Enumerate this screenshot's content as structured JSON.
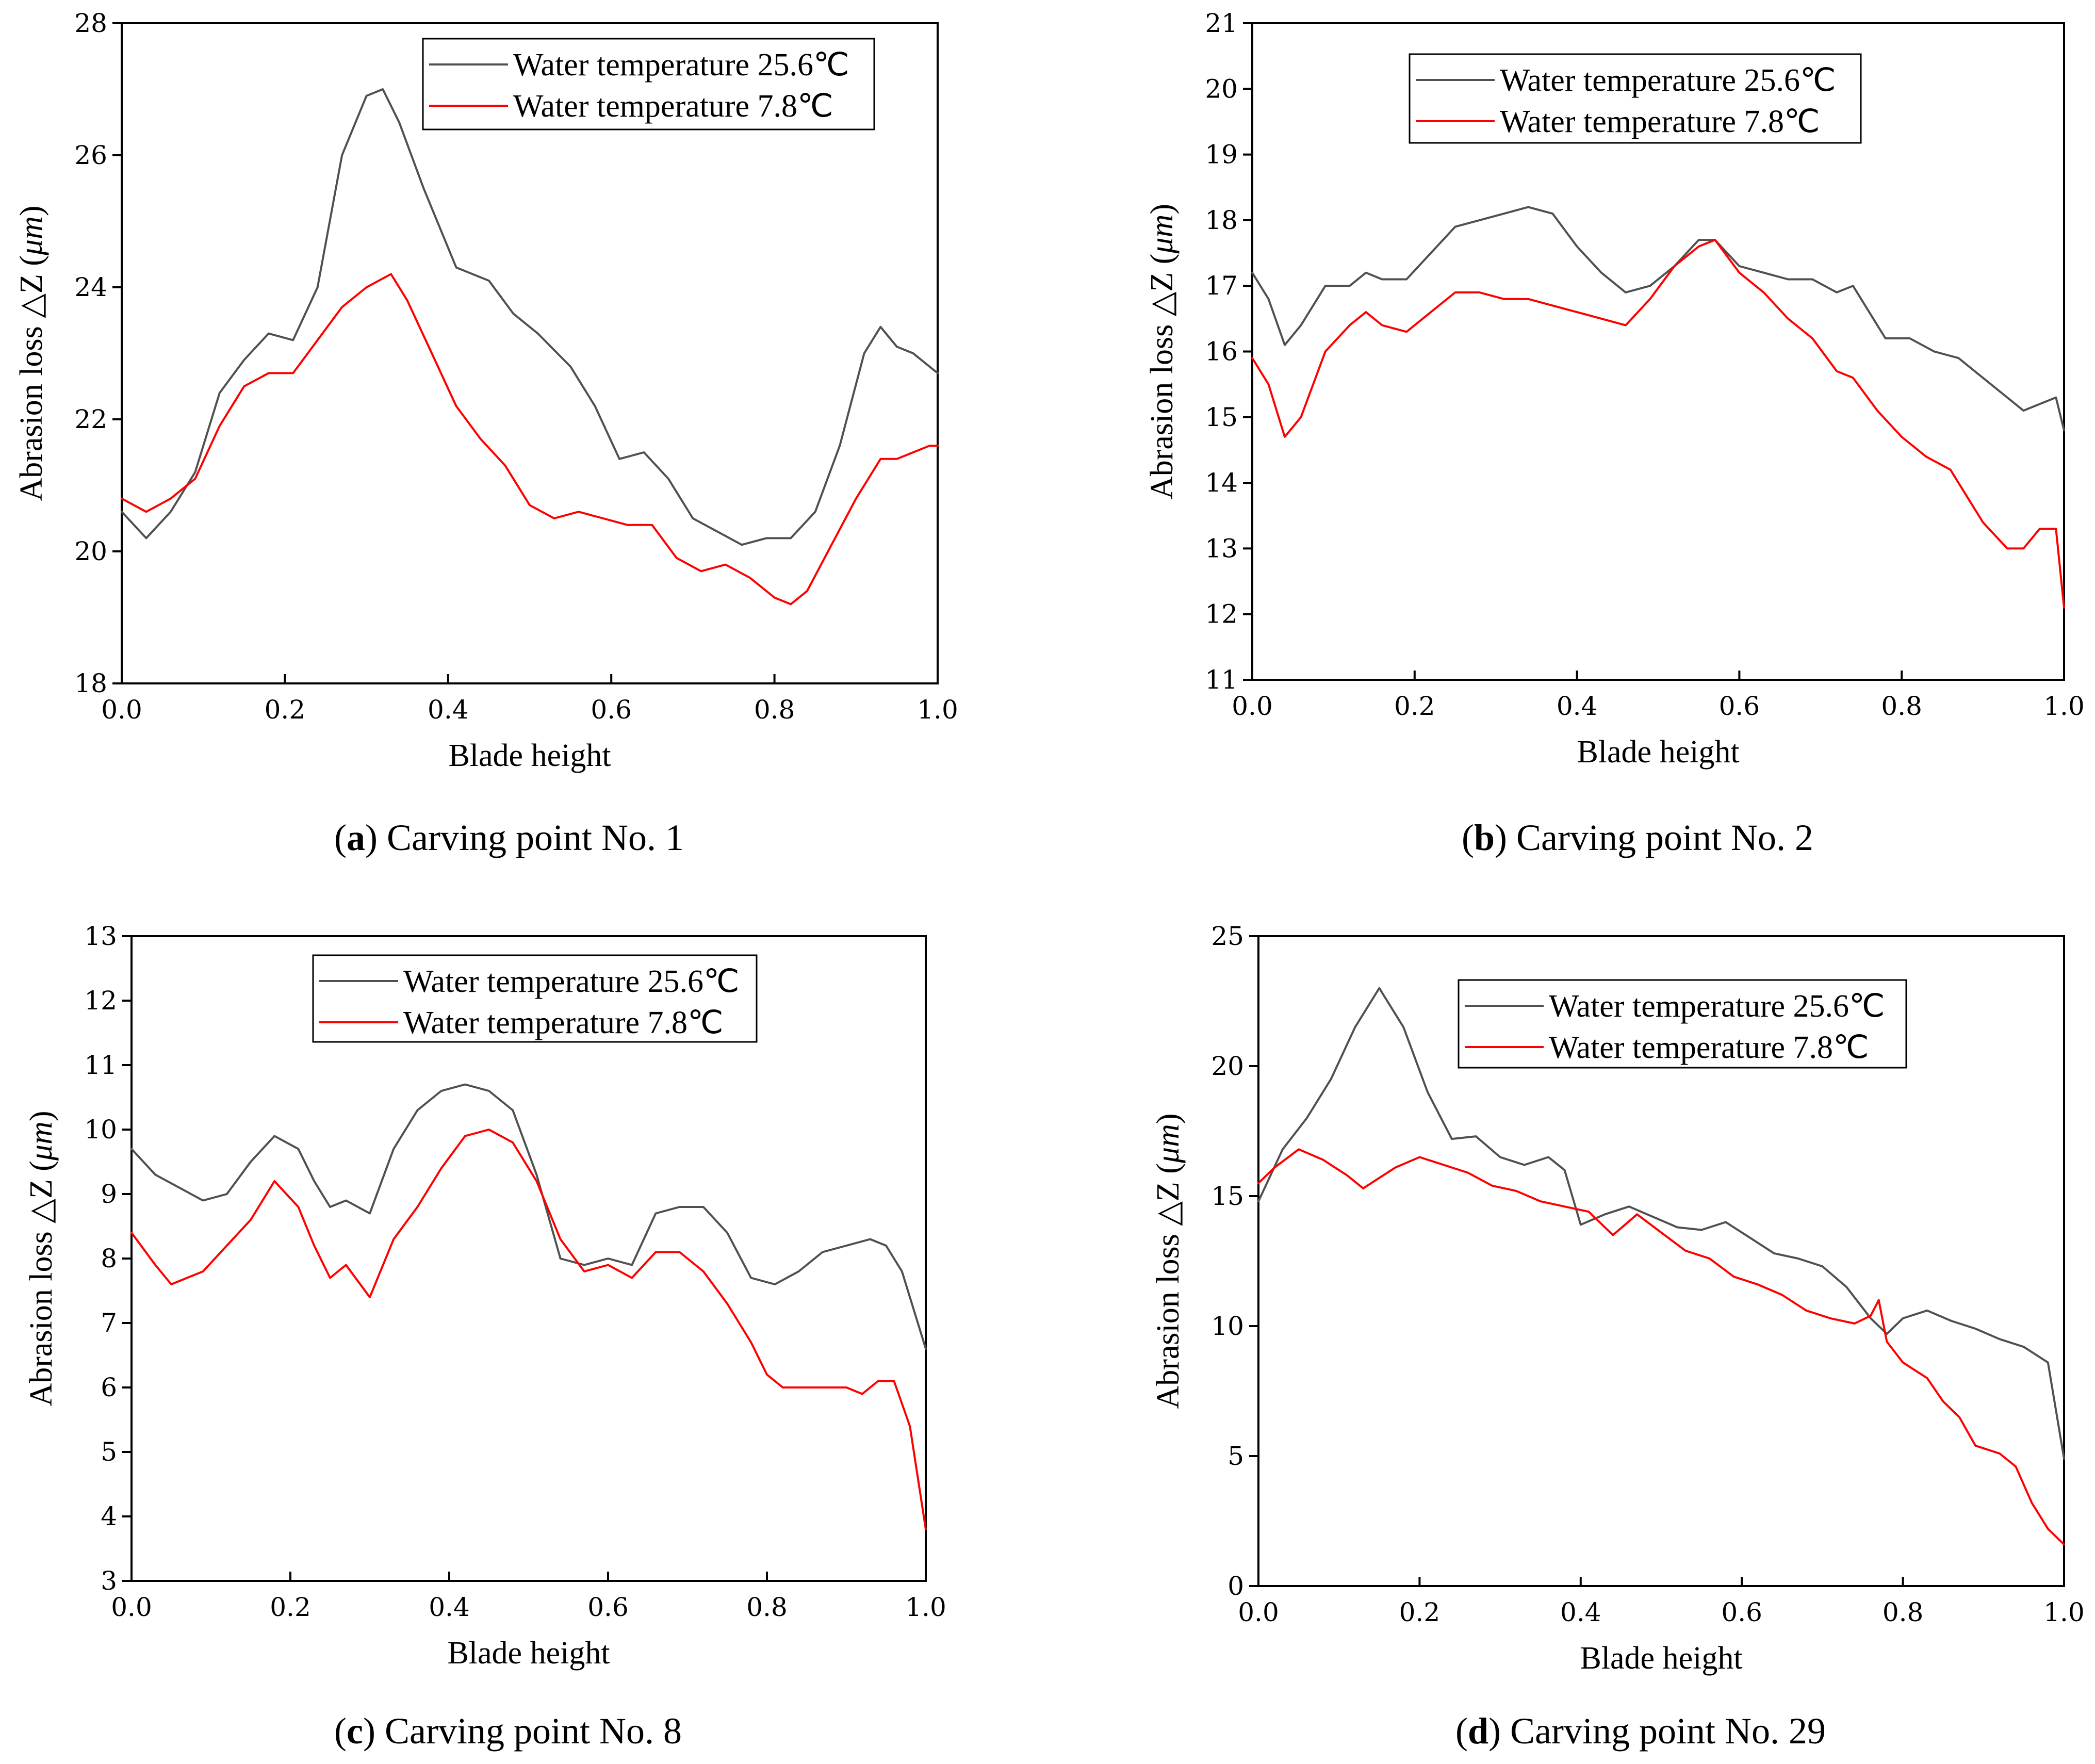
{
  "chart_data": [
    {
      "type": "line",
      "panel": "a",
      "xlabel": "Blade height",
      "ylabel": "Abrasion loss △Z (μm)",
      "ylabel_plain": "Abrasion loss △Z (",
      "ylabel_unit": "μm",
      "ylabel_close": ")",
      "xlim": [
        0,
        1
      ],
      "ylim": [
        18,
        28
      ],
      "xticks": [
        0,
        0.2,
        0.4,
        0.6,
        0.8,
        1.0
      ],
      "xtick_labels": [
        "0.0",
        "0.2",
        "0.4",
        "0.6",
        "0.8",
        "1.0"
      ],
      "yticks": [
        18,
        20,
        22,
        24,
        26,
        28
      ],
      "ytick_labels": [
        "18",
        "20",
        "22",
        "24",
        "26",
        "28"
      ],
      "legend_position": "top-right",
      "caption_letter": "a",
      "caption_text": "Carving point No. 1",
      "series": [
        {
          "name": "Water temperature 25.6℃",
          "color": "#505050",
          "x": [
            0,
            0.03,
            0.06,
            0.09,
            0.12,
            0.15,
            0.18,
            0.21,
            0.24,
            0.27,
            0.3,
            0.32,
            0.34,
            0.37,
            0.41,
            0.45,
            0.48,
            0.51,
            0.55,
            0.58,
            0.61,
            0.64,
            0.67,
            0.7,
            0.73,
            0.76,
            0.79,
            0.82,
            0.85,
            0.88,
            0.91,
            0.93,
            0.95,
            0.97,
            1.0
          ],
          "y": [
            20.6,
            20.2,
            20.6,
            21.2,
            22.4,
            22.9,
            23.3,
            23.2,
            24.0,
            26.0,
            26.9,
            27.0,
            26.5,
            25.5,
            24.3,
            24.1,
            23.6,
            23.3,
            22.8,
            22.2,
            21.4,
            21.5,
            21.1,
            20.5,
            20.3,
            20.1,
            20.2,
            20.2,
            20.6,
            21.6,
            23.0,
            23.4,
            23.1,
            23.0,
            22.7
          ]
        },
        {
          "name": "Water temperature 7.8℃",
          "color": "#ff0000",
          "x": [
            0,
            0.03,
            0.06,
            0.09,
            0.12,
            0.15,
            0.18,
            0.21,
            0.24,
            0.27,
            0.3,
            0.33,
            0.35,
            0.38,
            0.41,
            0.44,
            0.47,
            0.5,
            0.53,
            0.56,
            0.59,
            0.62,
            0.65,
            0.68,
            0.71,
            0.74,
            0.77,
            0.8,
            0.82,
            0.84,
            0.87,
            0.9,
            0.93,
            0.95,
            0.97,
            0.99,
            1.0
          ],
          "y": [
            20.8,
            20.6,
            20.8,
            21.1,
            21.9,
            22.5,
            22.7,
            22.7,
            23.2,
            23.7,
            24.0,
            24.2,
            23.8,
            23.0,
            22.2,
            21.7,
            21.3,
            20.7,
            20.5,
            20.6,
            20.5,
            20.4,
            20.4,
            19.9,
            19.7,
            19.8,
            19.6,
            19.3,
            19.2,
            19.4,
            20.1,
            20.8,
            21.4,
            21.4,
            21.5,
            21.6,
            21.6
          ]
        }
      ]
    },
    {
      "type": "line",
      "panel": "b",
      "xlabel": "Blade height",
      "ylabel": "Abrasion loss △Z (μm)",
      "ylabel_plain": "Abrasion loss △Z (",
      "ylabel_unit": "μm",
      "ylabel_close": ")",
      "xlim": [
        0,
        1
      ],
      "ylim": [
        11,
        21
      ],
      "xticks": [
        0,
        0.2,
        0.4,
        0.6,
        0.8,
        1.0
      ],
      "xtick_labels": [
        "0.0",
        "0.2",
        "0.4",
        "0.6",
        "0.8",
        "1.0"
      ],
      "yticks": [
        11,
        12,
        13,
        14,
        15,
        16,
        17,
        18,
        19,
        20,
        21
      ],
      "ytick_labels": [
        "11",
        "12",
        "13",
        "14",
        "15",
        "16",
        "17",
        "18",
        "19",
        "20",
        "21"
      ],
      "legend_position": "top-right",
      "caption_letter": "b",
      "caption_text": "Carving point No. 2",
      "series": [
        {
          "name": "Water temperature 25.6℃",
          "color": "#505050",
          "x": [
            0,
            0.02,
            0.04,
            0.06,
            0.09,
            0.12,
            0.14,
            0.16,
            0.19,
            0.22,
            0.25,
            0.28,
            0.31,
            0.34,
            0.37,
            0.4,
            0.43,
            0.46,
            0.49,
            0.52,
            0.55,
            0.57,
            0.6,
            0.63,
            0.66,
            0.69,
            0.72,
            0.74,
            0.76,
            0.78,
            0.81,
            0.84,
            0.87,
            0.9,
            0.93,
            0.95,
            0.97,
            0.99,
            1.0
          ],
          "y": [
            17.2,
            16.8,
            16.1,
            16.4,
            17.0,
            17.0,
            17.2,
            17.1,
            17.1,
            17.5,
            17.9,
            18.0,
            18.1,
            18.2,
            18.1,
            17.6,
            17.2,
            16.9,
            17.0,
            17.3,
            17.7,
            17.7,
            17.3,
            17.2,
            17.1,
            17.1,
            16.9,
            17.0,
            16.6,
            16.2,
            16.2,
            16.0,
            15.9,
            15.6,
            15.3,
            15.1,
            15.2,
            15.3,
            14.8
          ]
        },
        {
          "name": "Water temperature 7.8℃",
          "color": "#ff0000",
          "x": [
            0,
            0.02,
            0.04,
            0.06,
            0.09,
            0.12,
            0.14,
            0.16,
            0.19,
            0.22,
            0.25,
            0.28,
            0.31,
            0.34,
            0.37,
            0.4,
            0.43,
            0.46,
            0.49,
            0.52,
            0.55,
            0.57,
            0.6,
            0.63,
            0.66,
            0.69,
            0.72,
            0.74,
            0.77,
            0.8,
            0.83,
            0.86,
            0.88,
            0.9,
            0.93,
            0.95,
            0.97,
            0.99,
            1.0
          ],
          "y": [
            15.9,
            15.5,
            14.7,
            15.0,
            16.0,
            16.4,
            16.6,
            16.4,
            16.3,
            16.6,
            16.9,
            16.9,
            16.8,
            16.8,
            16.7,
            16.6,
            16.5,
            16.4,
            16.8,
            17.3,
            17.6,
            17.7,
            17.2,
            16.9,
            16.5,
            16.2,
            15.7,
            15.6,
            15.1,
            14.7,
            14.4,
            14.2,
            13.8,
            13.4,
            13.0,
            13.0,
            13.3,
            13.3,
            12.1
          ]
        }
      ]
    },
    {
      "type": "line",
      "panel": "c",
      "xlabel": "Blade height",
      "ylabel": "Abrasion loss △Z (μm)",
      "ylabel_plain": "Abrasion loss △Z (",
      "ylabel_unit": "μm",
      "ylabel_close": ")",
      "xlim": [
        0,
        1
      ],
      "ylim": [
        3,
        13
      ],
      "xticks": [
        0,
        0.2,
        0.4,
        0.6,
        0.8,
        1.0
      ],
      "xtick_labels": [
        "0.0",
        "0.2",
        "0.4",
        "0.6",
        "0.8",
        "1.0"
      ],
      "yticks": [
        3,
        4,
        5,
        6,
        7,
        8,
        9,
        10,
        11,
        12,
        13
      ],
      "ytick_labels": [
        "3",
        "4",
        "5",
        "6",
        "7",
        "8",
        "9",
        "10",
        "11",
        "12",
        "13"
      ],
      "legend_position": "top-right",
      "caption_letter": "c",
      "caption_text": "Carving point No. 8",
      "series": [
        {
          "name": "Water temperature 25.6℃",
          "color": "#505050",
          "x": [
            0,
            0.03,
            0.06,
            0.09,
            0.12,
            0.15,
            0.18,
            0.21,
            0.23,
            0.25,
            0.27,
            0.3,
            0.33,
            0.36,
            0.39,
            0.42,
            0.45,
            0.48,
            0.51,
            0.54,
            0.57,
            0.6,
            0.63,
            0.66,
            0.69,
            0.72,
            0.75,
            0.78,
            0.81,
            0.84,
            0.87,
            0.9,
            0.93,
            0.95,
            0.97,
            0.99,
            1.0
          ],
          "y": [
            9.7,
            9.3,
            9.1,
            8.9,
            9.0,
            9.5,
            9.9,
            9.7,
            9.2,
            8.8,
            8.9,
            8.7,
            9.7,
            10.3,
            10.6,
            10.7,
            10.6,
            10.3,
            9.3,
            8.0,
            7.9,
            8.0,
            7.9,
            8.7,
            8.8,
            8.8,
            8.4,
            7.7,
            7.6,
            7.8,
            8.1,
            8.2,
            8.3,
            8.2,
            7.8,
            7.0,
            6.6
          ]
        },
        {
          "name": "Water temperature 7.8℃",
          "color": "#ff0000",
          "x": [
            0,
            0.03,
            0.05,
            0.07,
            0.09,
            0.12,
            0.15,
            0.18,
            0.21,
            0.23,
            0.25,
            0.27,
            0.3,
            0.33,
            0.36,
            0.39,
            0.42,
            0.45,
            0.48,
            0.51,
            0.54,
            0.57,
            0.6,
            0.63,
            0.66,
            0.69,
            0.72,
            0.75,
            0.78,
            0.8,
            0.82,
            0.84,
            0.87,
            0.9,
            0.92,
            0.94,
            0.96,
            0.98,
            1.0
          ],
          "y": [
            8.4,
            7.9,
            7.6,
            7.7,
            7.8,
            8.2,
            8.6,
            9.2,
            8.8,
            8.2,
            7.7,
            7.9,
            7.4,
            8.3,
            8.8,
            9.4,
            9.9,
            10.0,
            9.8,
            9.2,
            8.3,
            7.8,
            7.9,
            7.7,
            8.1,
            8.1,
            7.8,
            7.3,
            6.7,
            6.2,
            6.0,
            6.0,
            6.0,
            6.0,
            5.9,
            6.1,
            6.1,
            5.4,
            3.8
          ]
        }
      ]
    },
    {
      "type": "line",
      "panel": "d",
      "xlabel": "Blade height",
      "ylabel": "Abrasion loss △Z (μm)",
      "ylabel_plain": "Abrasion loss △Z (",
      "ylabel_unit": "μm",
      "ylabel_close": ")",
      "xlim": [
        0,
        1
      ],
      "ylim": [
        0,
        25
      ],
      "xticks": [
        0,
        0.2,
        0.4,
        0.6,
        0.8,
        1.0
      ],
      "xtick_labels": [
        "0.0",
        "0.2",
        "0.4",
        "0.6",
        "0.8",
        "1.0"
      ],
      "yticks": [
        0,
        5,
        10,
        15,
        20,
        25
      ],
      "ytick_labels": [
        "0",
        "5",
        "10",
        "15",
        "20",
        "25"
      ],
      "legend_position": "top-right",
      "caption_letter": "d",
      "caption_text": "Carving point No. 29",
      "series": [
        {
          "name": "Water temperature 25.6℃",
          "color": "#505050",
          "x": [
            0,
            0.03,
            0.06,
            0.09,
            0.12,
            0.15,
            0.18,
            0.21,
            0.24,
            0.27,
            0.3,
            0.33,
            0.36,
            0.38,
            0.4,
            0.43,
            0.46,
            0.49,
            0.52,
            0.55,
            0.58,
            0.61,
            0.64,
            0.67,
            0.7,
            0.73,
            0.76,
            0.78,
            0.8,
            0.83,
            0.86,
            0.89,
            0.92,
            0.95,
            0.98,
            1.0
          ],
          "y": [
            14.8,
            16.8,
            18.0,
            19.5,
            21.5,
            23.0,
            21.5,
            19.0,
            17.2,
            17.3,
            16.5,
            16.2,
            16.5,
            16.0,
            13.9,
            14.3,
            14.6,
            14.2,
            13.8,
            13.7,
            14.0,
            13.4,
            12.8,
            12.6,
            12.3,
            11.5,
            10.3,
            9.7,
            10.3,
            10.6,
            10.2,
            9.9,
            9.5,
            9.2,
            8.6,
            4.9
          ]
        },
        {
          "name": "Water temperature 7.8℃",
          "color": "#ff0000",
          "x": [
            0,
            0.02,
            0.05,
            0.08,
            0.11,
            0.13,
            0.15,
            0.17,
            0.2,
            0.23,
            0.26,
            0.29,
            0.32,
            0.35,
            0.38,
            0.41,
            0.44,
            0.47,
            0.5,
            0.53,
            0.56,
            0.59,
            0.62,
            0.65,
            0.68,
            0.71,
            0.74,
            0.76,
            0.77,
            0.78,
            0.8,
            0.83,
            0.85,
            0.87,
            0.89,
            0.92,
            0.94,
            0.96,
            0.98,
            1.0
          ],
          "y": [
            15.5,
            16.1,
            16.8,
            16.4,
            15.8,
            15.3,
            15.7,
            16.1,
            16.5,
            16.2,
            15.9,
            15.4,
            15.2,
            14.8,
            14.6,
            14.4,
            13.5,
            14.3,
            13.6,
            12.9,
            12.6,
            11.9,
            11.6,
            11.2,
            10.6,
            10.3,
            10.1,
            10.4,
            11.0,
            9.4,
            8.6,
            8.0,
            7.1,
            6.5,
            5.4,
            5.1,
            4.6,
            3.2,
            2.2,
            1.6
          ]
        }
      ]
    }
  ]
}
